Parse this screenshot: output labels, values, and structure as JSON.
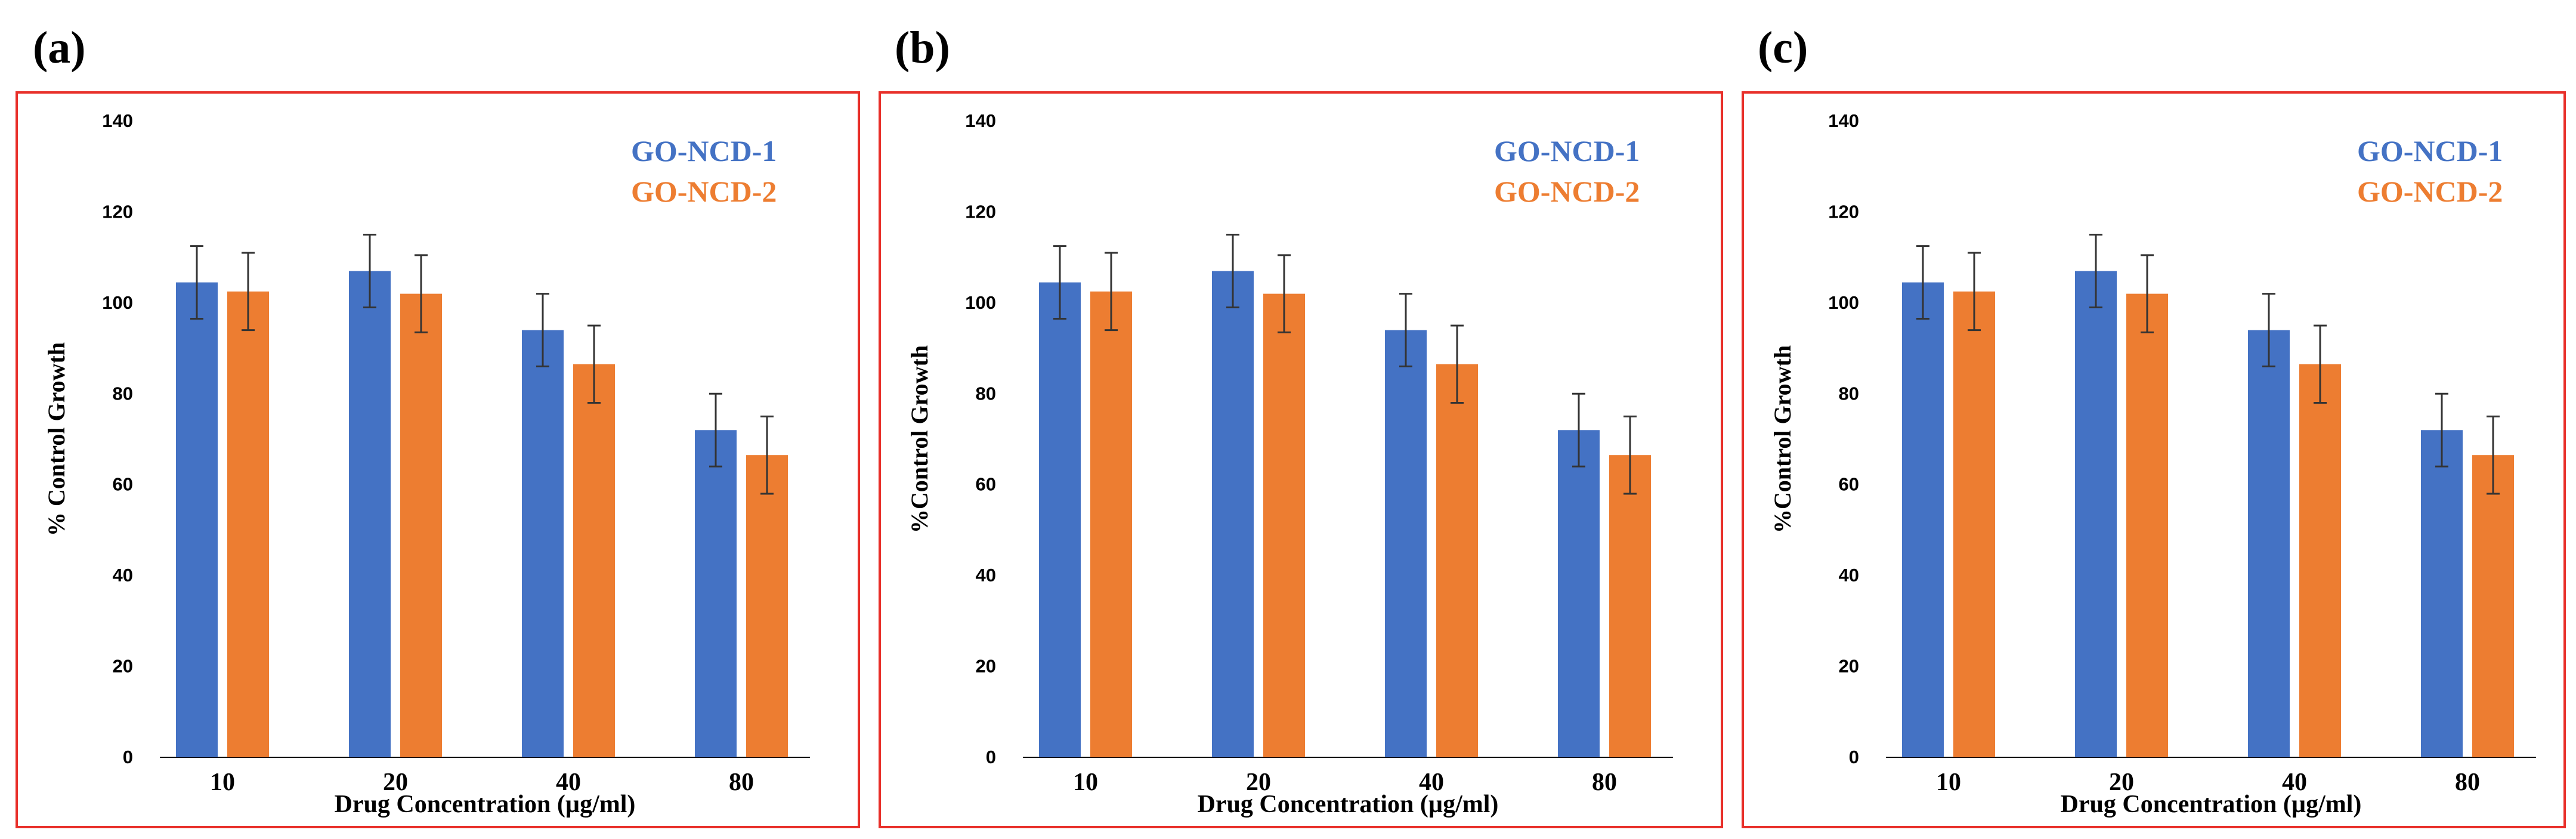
{
  "colors": {
    "series1": "#4472C4",
    "series2": "#ED7D31",
    "frame": "#E8302A",
    "axis": "#000000",
    "error_bar": "#333333"
  },
  "chart_data": [
    {
      "panel_label": "(a)",
      "type": "bar",
      "title": "",
      "categories": [
        "10",
        "20",
        "40",
        "80"
      ],
      "series": [
        {
          "name": "GO-NCD-1",
          "values": [
            104.5,
            107.0,
            94.0,
            72.0
          ],
          "errors": [
            8,
            8,
            8,
            8
          ]
        },
        {
          "name": "GO-NCD-2",
          "values": [
            102.5,
            102.0,
            86.5,
            66.5
          ],
          "errors": [
            8.5,
            8.5,
            8.5,
            8.5
          ]
        }
      ],
      "xlabel": "Drug Concentration (µg/ml)",
      "ylabel": "% Control Growth",
      "ylim": [
        0,
        140
      ],
      "yticks": [
        "0",
        "20",
        "40",
        "60",
        "80",
        "100",
        "120",
        "140"
      ],
      "grid": false,
      "legend_position": "top-right"
    },
    {
      "panel_label": "(b)",
      "type": "bar",
      "title": "",
      "categories": [
        "10",
        "20",
        "40",
        "80"
      ],
      "series": [
        {
          "name": "GO-NCD-1",
          "values": [
            104.5,
            107.0,
            94.0,
            72.0
          ],
          "errors": [
            8,
            8,
            8,
            8
          ]
        },
        {
          "name": "GO-NCD-2",
          "values": [
            102.5,
            102.0,
            86.5,
            66.5
          ],
          "errors": [
            8.5,
            8.5,
            8.5,
            8.5
          ]
        }
      ],
      "xlabel": "Drug Concentration (µg/ml)",
      "ylabel": "%Control Growth",
      "ylim": [
        0,
        140
      ],
      "yticks": [
        "0",
        "20",
        "40",
        "60",
        "80",
        "100",
        "120",
        "140"
      ],
      "grid": false,
      "legend_position": "top-right"
    },
    {
      "panel_label": "(c)",
      "type": "bar",
      "title": "",
      "categories": [
        "10",
        "20",
        "40",
        "80"
      ],
      "series": [
        {
          "name": "GO-NCD-1",
          "values": [
            104.5,
            107.0,
            94.0,
            72.0
          ],
          "errors": [
            8,
            8,
            8,
            8
          ]
        },
        {
          "name": "GO-NCD-2",
          "values": [
            102.5,
            102.0,
            86.5,
            66.5
          ],
          "errors": [
            8.5,
            8.5,
            8.5,
            8.5
          ]
        }
      ],
      "xlabel": "Drug Concentration (µg/ml)",
      "ylabel": "%Control Growth",
      "ylim": [
        0,
        140
      ],
      "yticks": [
        "0",
        "20",
        "40",
        "60",
        "80",
        "100",
        "120",
        "140"
      ],
      "grid": false,
      "legend_position": "top-right"
    }
  ]
}
